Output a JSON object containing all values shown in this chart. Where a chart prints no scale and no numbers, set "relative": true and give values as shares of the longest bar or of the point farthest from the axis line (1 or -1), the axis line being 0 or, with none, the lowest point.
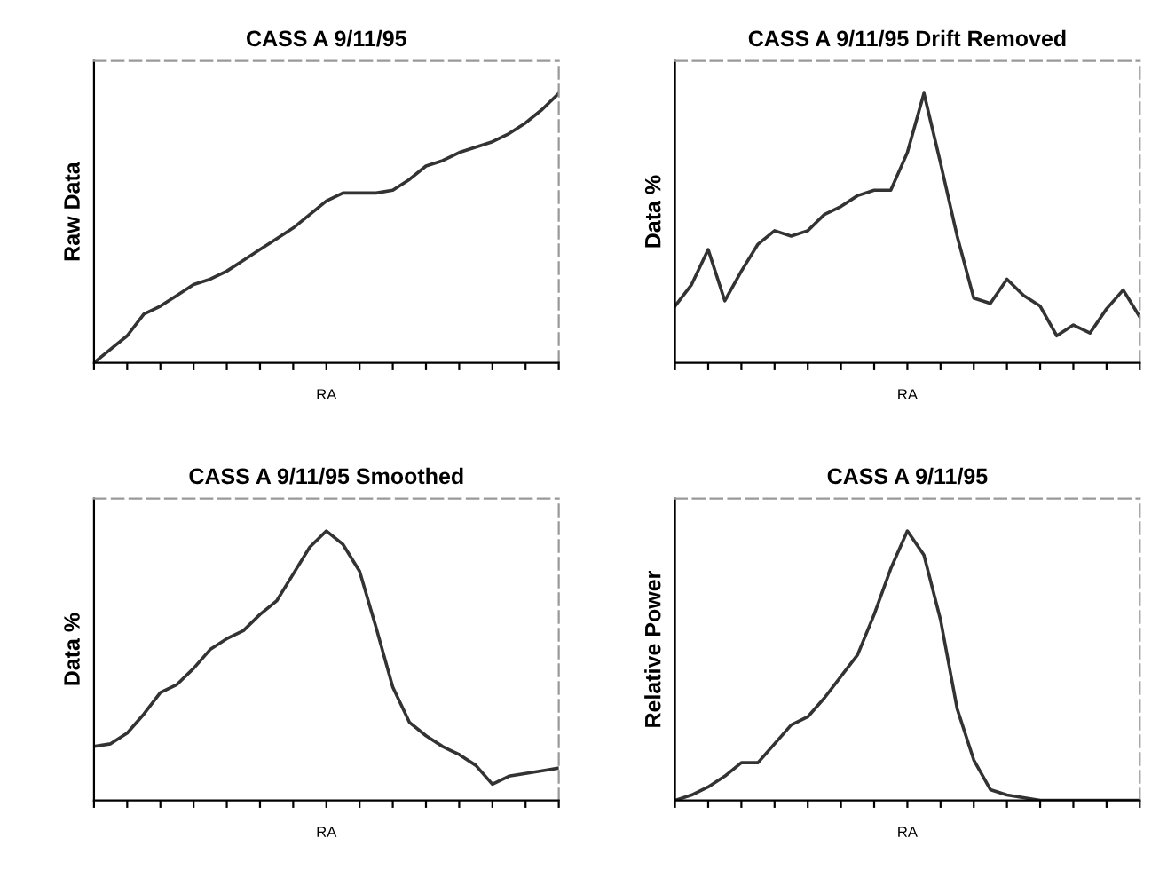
{
  "chart_data": [
    {
      "type": "line",
      "title": "CASS A 9/11/95",
      "xlabel": "RA",
      "ylabel": "Raw Data",
      "relative": true,
      "categories": [
        null,
        null,
        null,
        null,
        null,
        null,
        null,
        null,
        null,
        null,
        null,
        null,
        null,
        null,
        null,
        null,
        null,
        null,
        null,
        null,
        null,
        null,
        null,
        null,
        null,
        null,
        null,
        null,
        null
      ],
      "series": [
        {
          "color": "#333333",
          "values": [
            0,
            0.05,
            0.1,
            0.18,
            0.21,
            0.25,
            0.29,
            0.31,
            0.34,
            0.38,
            0.42,
            0.46,
            0.5,
            0.55,
            0.6,
            0.63,
            0.63,
            0.63,
            0.64,
            0.68,
            0.73,
            0.75,
            0.78,
            0.8,
            0.82,
            0.85,
            0.89,
            0.94,
            1
          ]
        }
      ]
    },
    {
      "type": "line",
      "title": "CASS A 9/11/95 Drift Removed",
      "xlabel": "RA",
      "ylabel": "Data %",
      "relative": true,
      "categories": [
        null,
        null,
        null,
        null,
        null,
        null,
        null,
        null,
        null,
        null,
        null,
        null,
        null,
        null,
        null,
        null,
        null,
        null,
        null,
        null,
        null,
        null,
        null,
        null,
        null,
        null,
        null,
        null,
        null
      ],
      "series": [
        {
          "color": "#333333",
          "values": [
            0.21,
            0.29,
            0.42,
            0.23,
            0.34,
            0.44,
            0.49,
            0.47,
            0.49,
            0.55,
            0.58,
            0.62,
            0.64,
            0.64,
            0.78,
            1,
            0.74,
            0.47,
            0.24,
            0.22,
            0.31,
            0.25,
            0.21,
            0.1,
            0.14,
            0.11,
            0.2,
            0.27,
            0.17
          ]
        }
      ]
    },
    {
      "type": "line",
      "title": "CASS A 9/11/95 Smoothed",
      "xlabel": "RA",
      "ylabel": "Data %",
      "relative": true,
      "categories": [
        null,
        null,
        null,
        null,
        null,
        null,
        null,
        null,
        null,
        null,
        null,
        null,
        null,
        null,
        null,
        null,
        null,
        null,
        null,
        null,
        null,
        null,
        null,
        null,
        null,
        null,
        null,
        null,
        null
      ],
      "series": [
        {
          "color": "#333333",
          "values": [
            0.2,
            0.21,
            0.25,
            0.32,
            0.4,
            0.43,
            0.49,
            0.56,
            0.6,
            0.63,
            0.69,
            0.74,
            0.84,
            0.94,
            1,
            0.95,
            0.85,
            0.64,
            0.42,
            0.29,
            0.24,
            0.2,
            0.17,
            0.13,
            0.06,
            0.09,
            0.1,
            0.11,
            0.12
          ]
        }
      ]
    },
    {
      "type": "line",
      "title": "CASS A 9/11/95",
      "xlabel": "RA",
      "ylabel": "Relative Power",
      "relative": true,
      "categories": [
        null,
        null,
        null,
        null,
        null,
        null,
        null,
        null,
        null,
        null,
        null,
        null,
        null,
        null,
        null,
        null,
        null,
        null,
        null,
        null,
        null,
        null,
        null,
        null,
        null,
        null,
        null,
        null,
        null
      ],
      "series": [
        {
          "color": "#333333",
          "values": [
            0,
            0.02,
            0.05,
            0.09,
            0.14,
            0.14,
            0.21,
            0.28,
            0.31,
            0.38,
            0.46,
            0.54,
            0.69,
            0.86,
            1,
            0.91,
            0.67,
            0.34,
            0.15,
            0.04,
            0.02,
            0.01,
            0,
            0,
            0,
            0,
            0,
            0,
            0
          ]
        }
      ]
    }
  ]
}
